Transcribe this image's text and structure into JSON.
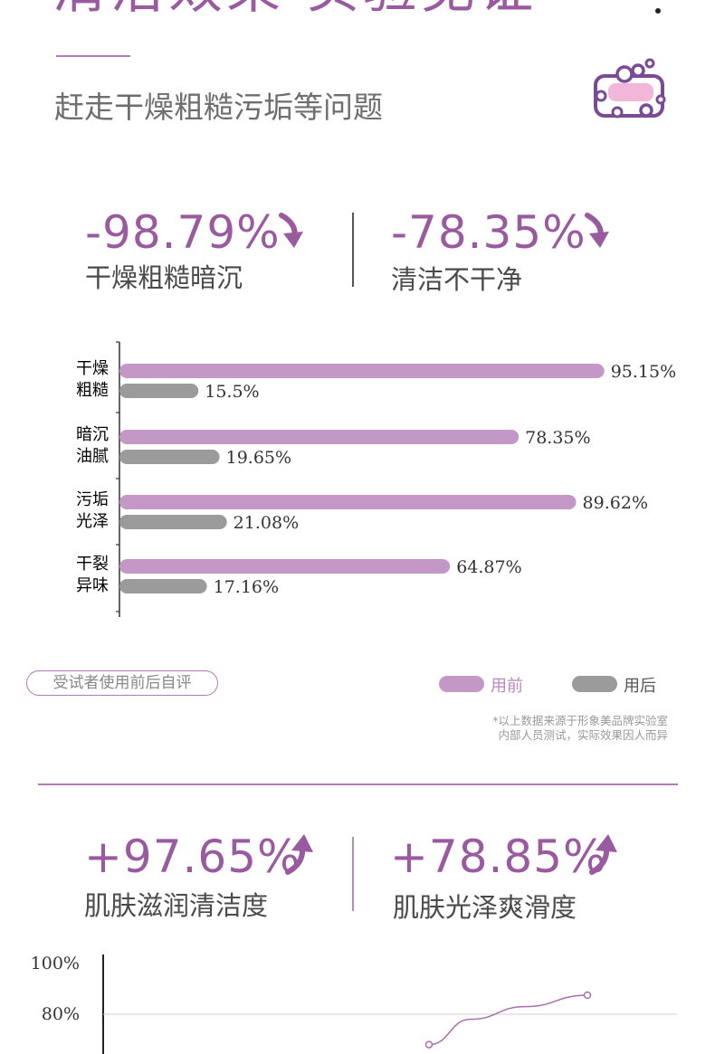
{
  "headline": "清洁效果 实验见证",
  "subtitle": "赶走干燥粗糙污垢等问题",
  "stats_top": [
    {
      "value": "-98.79%",
      "label": "干燥粗糙暗沉",
      "icon": "arrow-down-icon"
    },
    {
      "value": "-78.35%",
      "label": "清洁不干净",
      "icon": "arrow-down-icon"
    }
  ],
  "chart_data": [
    {
      "type": "bar",
      "orientation": "horizontal",
      "categories": [
        "干燥粗糙",
        "暗沉油腻",
        "污垢光泽",
        "干裂异味"
      ],
      "category_lines": [
        [
          "干燥",
          "粗糙"
        ],
        [
          "暗沉",
          "油腻"
        ],
        [
          "污垢",
          "光泽"
        ],
        [
          "干裂",
          "异味"
        ]
      ],
      "series": [
        {
          "name": "用前",
          "values": [
            95.15,
            78.35,
            89.62,
            64.87
          ],
          "labels": [
            "95.15%",
            "78.35%",
            "89.62%",
            "64.87%"
          ],
          "color": "#c498c6"
        },
        {
          "name": "用后",
          "values": [
            15.5,
            19.65,
            21.08,
            17.16
          ],
          "labels": [
            "15.5%",
            "19.65%",
            "21.08%",
            "17.16%"
          ],
          "color": "#9b9b9b"
        }
      ],
      "xlim": [
        0,
        100
      ],
      "legend": "bottom-right"
    },
    {
      "type": "line",
      "yticks": [
        "100%",
        "80%"
      ],
      "ylim": [
        0,
        100
      ],
      "series": [
        {
          "values": [
            68,
            78,
            83,
            87.5
          ]
        }
      ],
      "grid": true
    }
  ],
  "legend": [
    {
      "label": "用前",
      "color": "#c498c6",
      "text_color": "#b987bb"
    },
    {
      "label": "用后",
      "color": "#9b9b9b",
      "text_color": "#555555"
    }
  ],
  "note_pill": "受试者使用前后自评",
  "footnote": [
    "*以上数据来源于形象美品牌实验室",
    "内部人员测试，实际效果因人而异"
  ],
  "stats_bottom": [
    {
      "value": "+97.65%",
      "label": "肌肤滋润清洁度",
      "icon": "arrow-up-icon"
    },
    {
      "value": "+78.85%",
      "label": "肌肤光泽爽滑度",
      "icon": "arrow-up-icon"
    }
  ],
  "colors": {
    "accent": "#9a5aa0",
    "before": "#c498c6",
    "after": "#9b9b9b"
  },
  "logo_icon": "soap-bubbles-icon"
}
